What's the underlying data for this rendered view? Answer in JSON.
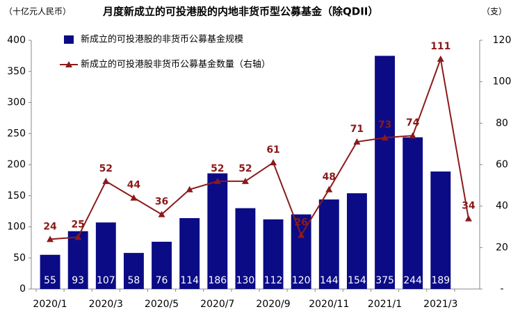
{
  "chart_data": {
    "type": "bar_line",
    "title": "月度新成立的可投港股的内地非货币型公募基金（除QDII）",
    "y_label": "（十亿元人民币）",
    "y2_label": "（支）",
    "categories": [
      "2020/1",
      null,
      "2020/3",
      null,
      "2020/5",
      null,
      "2020/7",
      null,
      "2020/9",
      null,
      "2020/11",
      null,
      "2021/1",
      null,
      "2021/3",
      null
    ],
    "series": [
      {
        "name": "新成立的可投港股的非货币公募基金规模",
        "type": "bar",
        "color": "#0b0b86",
        "values": [
          55,
          93,
          107,
          58,
          76,
          114,
          186,
          130,
          112,
          120,
          144,
          154,
          375,
          244,
          189,
          null
        ]
      },
      {
        "name": "新成立的可投港股非货币公募基金数量（右轴）",
        "type": "line",
        "axis": "y2",
        "color": "#8b1a1a",
        "values": [
          24,
          25,
          52,
          44,
          36,
          48,
          52,
          52,
          61,
          26,
          48,
          71,
          73,
          74,
          111,
          34
        ],
        "value_labels": [
          "24",
          "25",
          "52",
          "44",
          "36",
          null,
          "52",
          "52",
          "61",
          "26",
          "48",
          "71",
          "73",
          "74",
          "111",
          "34"
        ]
      }
    ],
    "ylim": [
      0,
      400
    ],
    "yticks": [
      0,
      50,
      100,
      150,
      200,
      250,
      300,
      350,
      400
    ],
    "y2lim": [
      0,
      120
    ],
    "y2ticks": [
      {
        "value": 0,
        "label": "-"
      },
      20,
      40,
      60,
      80,
      100,
      120
    ]
  }
}
